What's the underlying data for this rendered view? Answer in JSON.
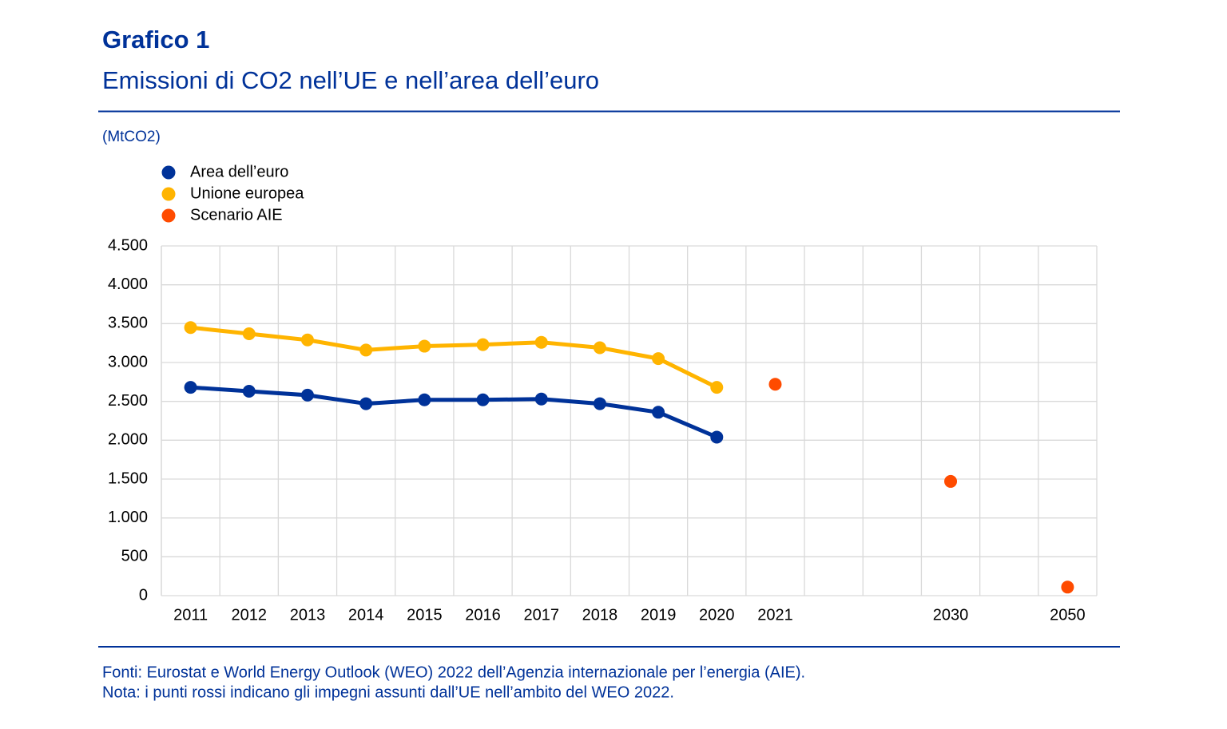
{
  "chart_data": {
    "type": "line",
    "title": "Grafico 1",
    "subtitle": "Emissioni di CO2 nell’UE e nell’area dell’euro",
    "y_unit": "(MtCO2)",
    "categories": [
      "2011",
      "2012",
      "2013",
      "2014",
      "2015",
      "2016",
      "2017",
      "2018",
      "2019",
      "2020",
      "2021",
      null,
      null,
      "2030",
      null,
      "2050"
    ],
    "series": [
      {
        "name": "Area dell’euro",
        "color": "#003299",
        "line": true,
        "values": [
          2680,
          2630,
          2580,
          2470,
          2520,
          2520,
          2530,
          2470,
          2360,
          2040,
          null,
          null,
          null,
          null,
          null,
          null
        ]
      },
      {
        "name": "Unione europea",
        "color": "#ffb400",
        "line": true,
        "values": [
          3450,
          3370,
          3290,
          3160,
          3210,
          3230,
          3260,
          3190,
          3050,
          2680,
          null,
          null,
          null,
          null,
          null,
          null
        ]
      },
      {
        "name": "Scenario AIE",
        "color": "#ff4b00",
        "line": false,
        "values": [
          null,
          null,
          null,
          null,
          null,
          null,
          null,
          null,
          null,
          null,
          2720,
          null,
          null,
          1470,
          null,
          110
        ]
      }
    ],
    "ylim": [
      0,
      4500
    ],
    "yticks": [
      0,
      500,
      {
        "value": 1000,
        "label": "1.000"
      },
      {
        "value": 1500,
        "label": "1.500"
      },
      {
        "value": 2000,
        "label": "2.000"
      },
      {
        "value": 2500,
        "label": "2.500"
      },
      {
        "value": 3000,
        "label": "3.000"
      },
      {
        "value": 3500,
        "label": "3.500"
      },
      {
        "value": 4000,
        "label": "4.000"
      },
      {
        "value": 4500,
        "label": "4.500"
      }
    ],
    "grid": true,
    "notes": [
      "Fonti: Eurostat e World Energy Outlook (WEO) 2022 dell’Agenzia internazionale per l’energia (AIE).",
      "Nota: i punti rossi indicano gli impegni assunti dall’UE nell’ambito del WEO 2022."
    ]
  }
}
